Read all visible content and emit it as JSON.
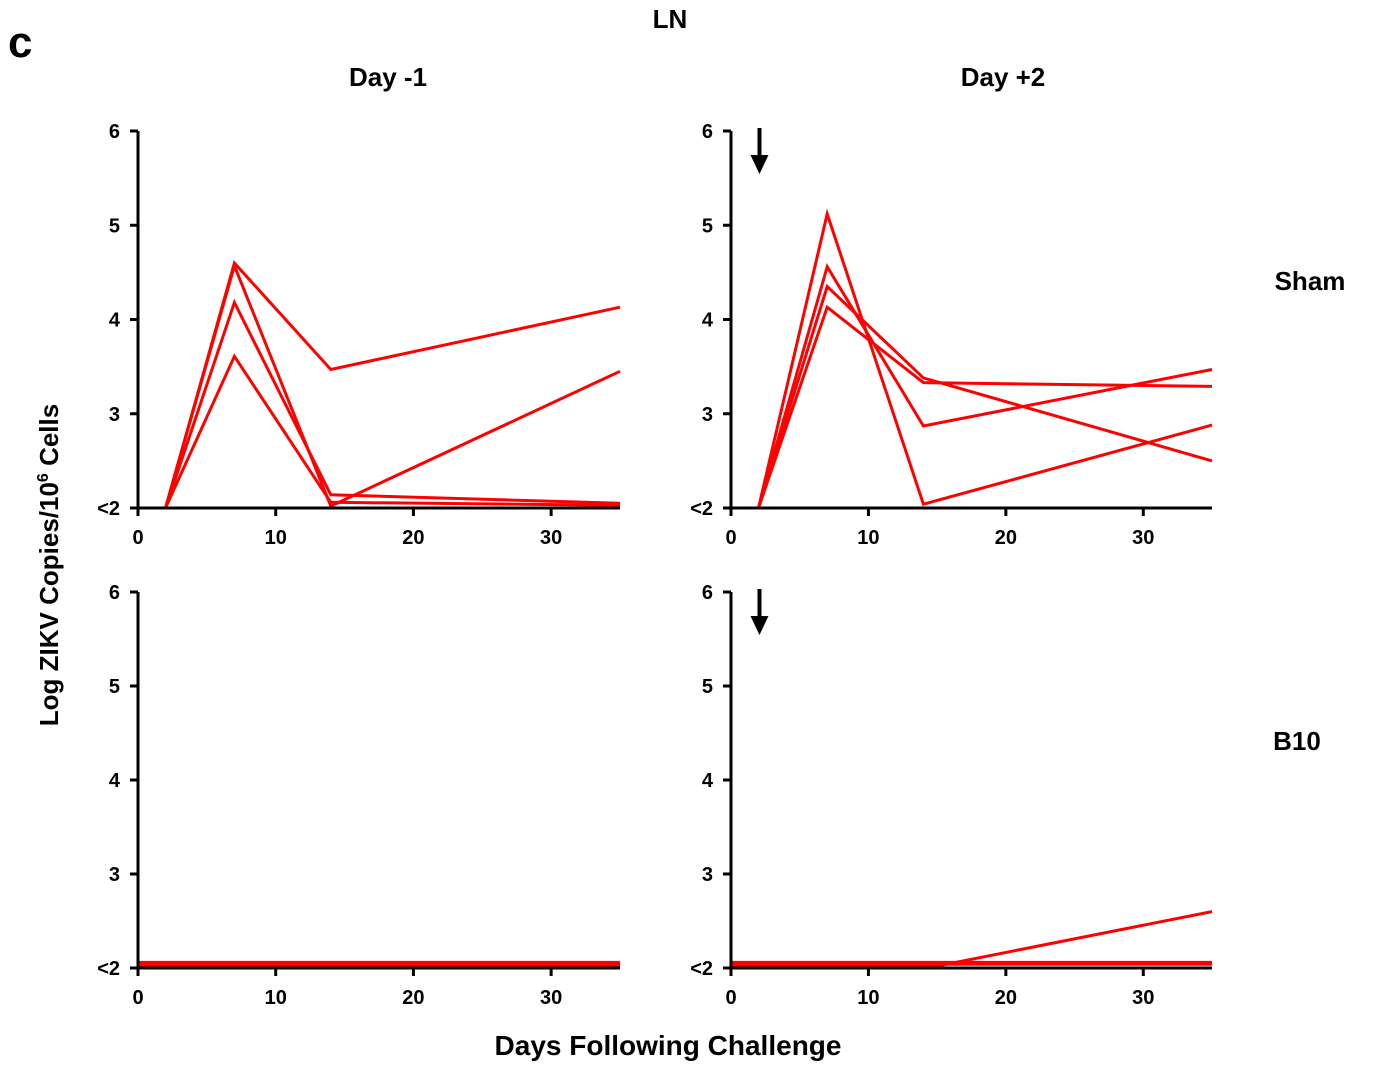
{
  "figure": {
    "panel_letter": "c",
    "title": "LN",
    "column_titles": [
      "Day -1",
      "Day +2"
    ],
    "row_labels": [
      "Sham",
      "B10"
    ],
    "ylabel_main": "Log ZIKV Copies/10",
    "ylabel_sup": "6",
    "ylabel_tail": " Cells",
    "xlabel": "Days Following Challenge",
    "series_color": "#ff0000",
    "arrow_marker_day": 2,
    "arrow_icon": "down-arrow-icon"
  },
  "chart_data": [
    {
      "type": "line",
      "column": "Day -1",
      "row": "Sham",
      "xlim": [
        0,
        35
      ],
      "ylim": [
        2,
        6
      ],
      "xticks": [
        0,
        10,
        20,
        30
      ],
      "yticks": [
        2,
        3,
        4,
        5,
        6
      ],
      "ytick_labels": [
        "<2",
        "3",
        "4",
        "5",
        "6"
      ],
      "arrow": false,
      "series": [
        {
          "x": [
            0,
            2,
            7,
            14,
            35
          ],
          "y": [
            2.0,
            2.0,
            4.6,
            3.47,
            4.13
          ]
        },
        {
          "x": [
            0,
            2,
            7,
            14,
            35
          ],
          "y": [
            2.0,
            2.0,
            4.57,
            2.02,
            3.45
          ]
        },
        {
          "x": [
            0,
            2,
            7,
            14,
            35
          ],
          "y": [
            2.0,
            2.0,
            4.18,
            2.14,
            2.05
          ]
        },
        {
          "x": [
            0,
            2,
            7,
            14,
            35
          ],
          "y": [
            2.0,
            2.0,
            3.61,
            2.06,
            2.03
          ]
        }
      ]
    },
    {
      "type": "line",
      "column": "Day +2",
      "row": "Sham",
      "xlim": [
        0,
        35
      ],
      "ylim": [
        2,
        6
      ],
      "xticks": [
        0,
        10,
        20,
        30
      ],
      "yticks": [
        2,
        3,
        4,
        5,
        6
      ],
      "ytick_labels": [
        "<2",
        "3",
        "4",
        "5",
        "6"
      ],
      "arrow": true,
      "series": [
        {
          "x": [
            0,
            2,
            7,
            14,
            35
          ],
          "y": [
            2.0,
            2.0,
            5.12,
            2.04,
            2.88
          ]
        },
        {
          "x": [
            0,
            2,
            7,
            14,
            35
          ],
          "y": [
            2.0,
            2.0,
            4.56,
            2.87,
            3.47
          ]
        },
        {
          "x": [
            0,
            2,
            7,
            14,
            35
          ],
          "y": [
            2.0,
            2.0,
            4.35,
            3.38,
            2.5
          ]
        },
        {
          "x": [
            0,
            2,
            7,
            14,
            35
          ],
          "y": [
            2.0,
            2.0,
            4.13,
            3.33,
            3.29
          ]
        }
      ]
    },
    {
      "type": "line",
      "column": "Day -1",
      "row": "B10",
      "xlim": [
        0,
        35
      ],
      "ylim": [
        2,
        6
      ],
      "xticks": [
        0,
        10,
        20,
        30
      ],
      "yticks": [
        2,
        3,
        4,
        5,
        6
      ],
      "ytick_labels": [
        "<2",
        "3",
        "4",
        "5",
        "6"
      ],
      "arrow": false,
      "series": [
        {
          "x": [
            0,
            35
          ],
          "y": [
            2.0,
            2.0
          ]
        },
        {
          "x": [
            0,
            35
          ],
          "y": [
            2.02,
            2.02
          ]
        },
        {
          "x": [
            0,
            35
          ],
          "y": [
            2.04,
            2.04
          ]
        },
        {
          "x": [
            0,
            35
          ],
          "y": [
            2.06,
            2.06
          ]
        }
      ]
    },
    {
      "type": "line",
      "column": "Day +2",
      "row": "B10",
      "xlim": [
        0,
        35
      ],
      "ylim": [
        2,
        6
      ],
      "xticks": [
        0,
        10,
        20,
        30
      ],
      "yticks": [
        2,
        3,
        4,
        5,
        6
      ],
      "ytick_labels": [
        "<2",
        "3",
        "4",
        "5",
        "6"
      ],
      "arrow": true,
      "series": [
        {
          "x": [
            0,
            15,
            35
          ],
          "y": [
            2.02,
            2.02,
            2.6
          ]
        },
        {
          "x": [
            0,
            35
          ],
          "y": [
            2.0,
            2.0
          ]
        },
        {
          "x": [
            0,
            35
          ],
          "y": [
            2.04,
            2.04
          ]
        },
        {
          "x": [
            0,
            35
          ],
          "y": [
            2.06,
            2.06
          ]
        }
      ]
    }
  ]
}
